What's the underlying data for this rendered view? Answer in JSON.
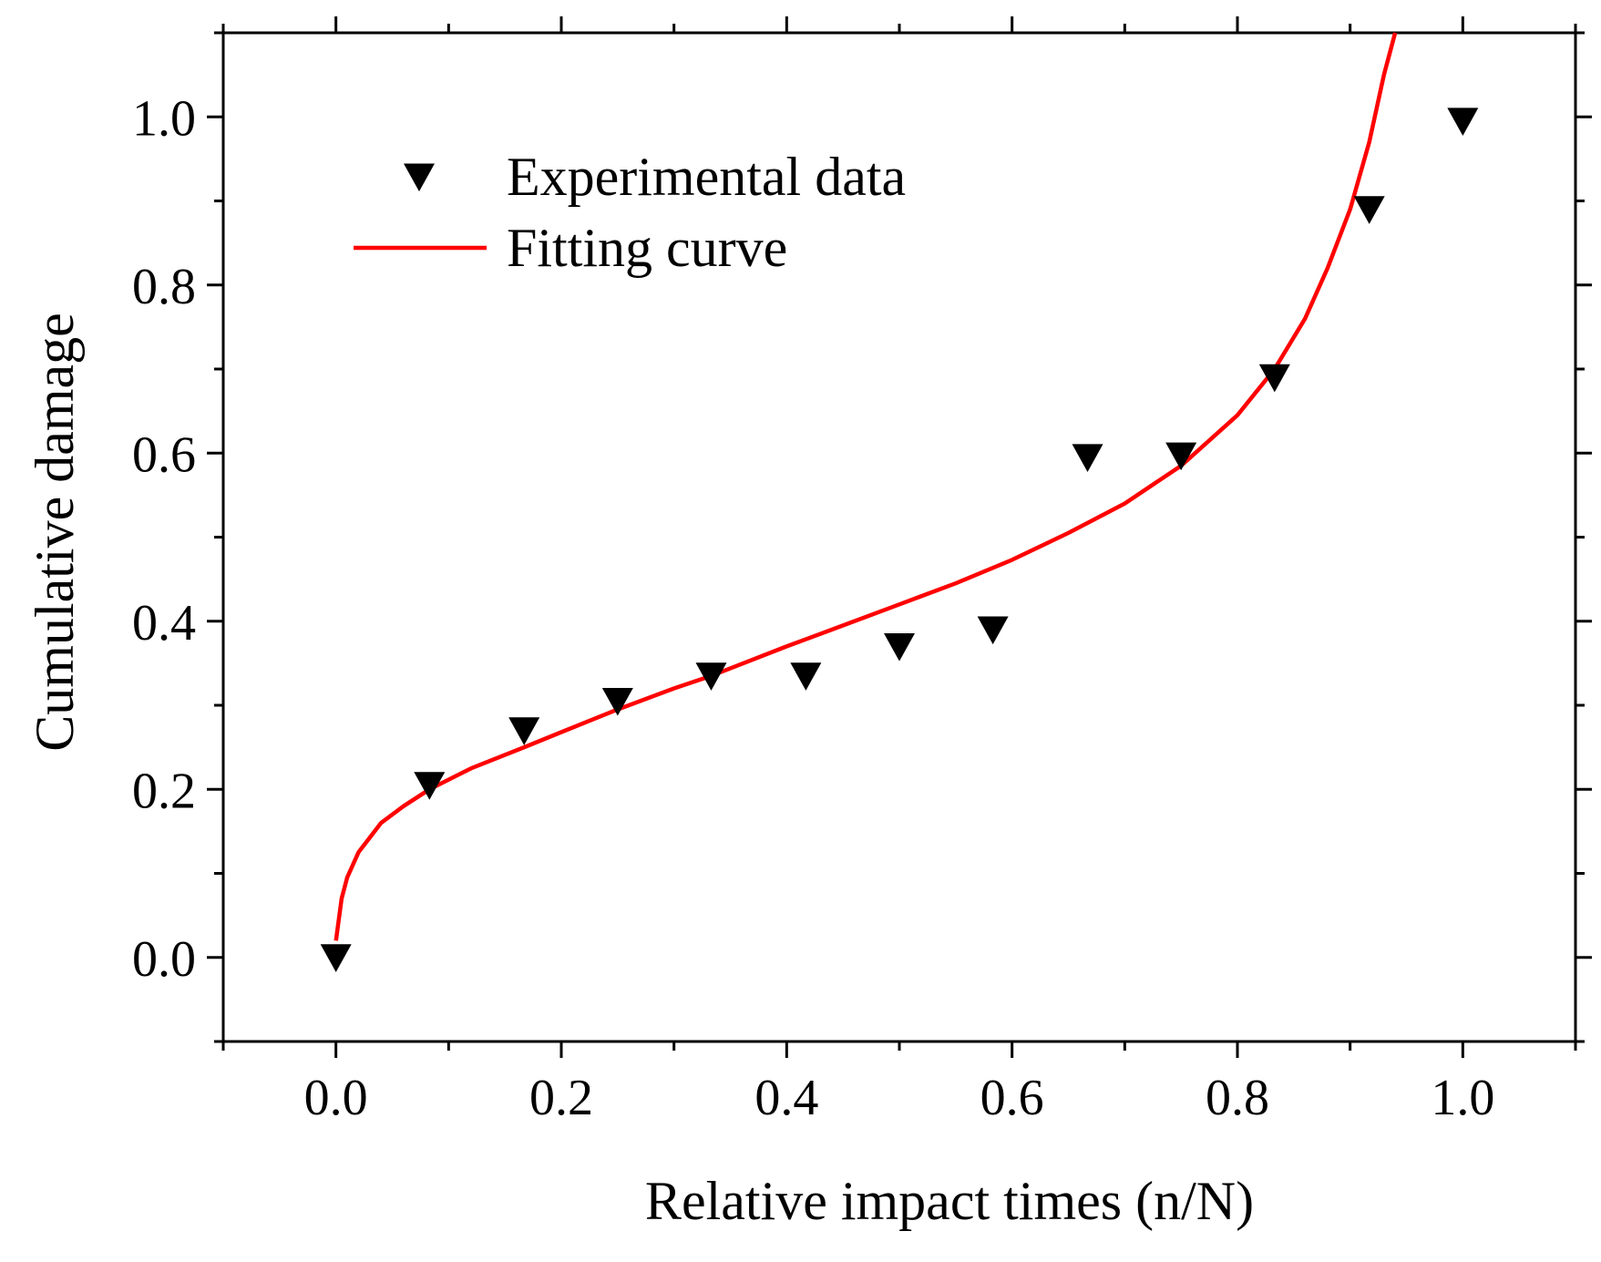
{
  "chart_data": {
    "type": "scatter",
    "title": "",
    "xlabel": "Relative impact times (n/N)",
    "ylabel": "Cumulative damage",
    "xlim": [
      -0.1,
      1.1
    ],
    "ylim": [
      -0.1,
      1.1
    ],
    "xticks": [
      "0.0",
      "0.2",
      "0.4",
      "0.6",
      "0.8",
      "1.0"
    ],
    "yticks": [
      "0.0",
      "0.2",
      "0.4",
      "0.6",
      "0.8",
      "1.0"
    ],
    "grid": false,
    "legend_position": "top-left",
    "colors": {
      "axis": "#000000",
      "marker": "#000000",
      "curve": "#ff0000"
    },
    "series": [
      {
        "name": "Experimental data",
        "kind": "scatter",
        "marker": "triangle-down",
        "x": [
          0.0,
          0.083,
          0.167,
          0.25,
          0.333,
          0.417,
          0.5,
          0.583,
          0.667,
          0.75,
          0.833,
          0.917,
          1.0
        ],
        "y": [
          0.0,
          0.205,
          0.27,
          0.305,
          0.335,
          0.335,
          0.37,
          0.39,
          0.595,
          0.597,
          0.69,
          0.89,
          0.995
        ]
      },
      {
        "name": "Fitting curve",
        "kind": "line",
        "x": [
          0.0,
          0.005,
          0.01,
          0.02,
          0.04,
          0.06,
          0.083,
          0.12,
          0.167,
          0.2,
          0.25,
          0.3,
          0.333,
          0.4,
          0.45,
          0.5,
          0.55,
          0.6,
          0.65,
          0.7,
          0.75,
          0.8,
          0.833,
          0.86,
          0.88,
          0.9,
          0.917,
          0.93,
          0.94
        ],
        "y": [
          0.02,
          0.07,
          0.095,
          0.125,
          0.16,
          0.18,
          0.2,
          0.225,
          0.25,
          0.268,
          0.295,
          0.32,
          0.335,
          0.37,
          0.395,
          0.42,
          0.445,
          0.473,
          0.505,
          0.54,
          0.585,
          0.645,
          0.7,
          0.76,
          0.82,
          0.89,
          0.97,
          1.05,
          1.1
        ]
      }
    ]
  }
}
